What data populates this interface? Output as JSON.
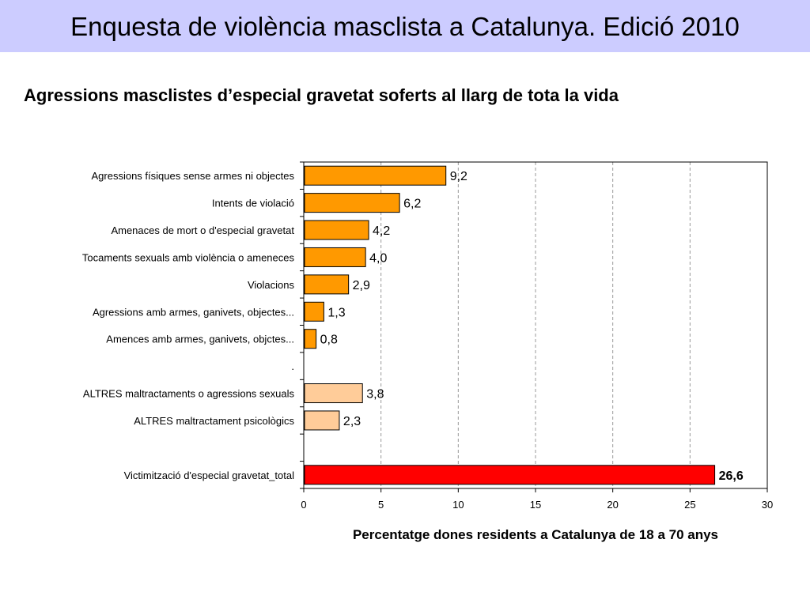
{
  "header": {
    "title": "Enquesta de violència masclista a Catalunya. Edició 2010"
  },
  "colors": {
    "banner": "#ccccff",
    "bar_main": "#ff9900",
    "bar_other": "#ffcc99",
    "bar_total": "#ff0000"
  },
  "chart_data": {
    "type": "bar",
    "orientation": "horizontal",
    "title": "Agressions masclistes d’especial gravetat soferts al llarg de tota la vida",
    "xlabel": "Percentatge dones residents a Catalunya de 18 a 70 anys",
    "ylabel": "",
    "xlim": [
      0,
      30
    ],
    "xticks": [
      "0",
      "5",
      "10",
      "15",
      "20",
      "25",
      "30"
    ],
    "grid": "vertical dashed",
    "categories": [
      "Agressions físiques sense armes ni objectes",
      "Intents de violació",
      "Amenaces de mort  o d'especial gravetat",
      "Tocaments sexuals amb violència o ameneces",
      "Violacions",
      "Agressions amb armes, ganivets, objectes...",
      "Amences amb armes, ganivets, objctes...",
      ".",
      "ALTRES maltractaments o agressions sexuals",
      "ALTRES maltractament psicològics",
      "",
      "Victimització d'especial gravetat_total"
    ],
    "values": [
      9.2,
      6.2,
      4.2,
      4.0,
      2.9,
      1.3,
      0.8,
      null,
      3.8,
      2.3,
      null,
      26.6
    ],
    "value_labels": [
      "9,2",
      "6,2",
      "4,2",
      "4,0",
      "2,9",
      "1,3",
      "0,8",
      "",
      "3,8",
      "2,3",
      "",
      "26,6"
    ],
    "bar_groups": [
      "main",
      "main",
      "main",
      "main",
      "main",
      "main",
      "main",
      "",
      "other",
      "other",
      "",
      "total"
    ]
  }
}
